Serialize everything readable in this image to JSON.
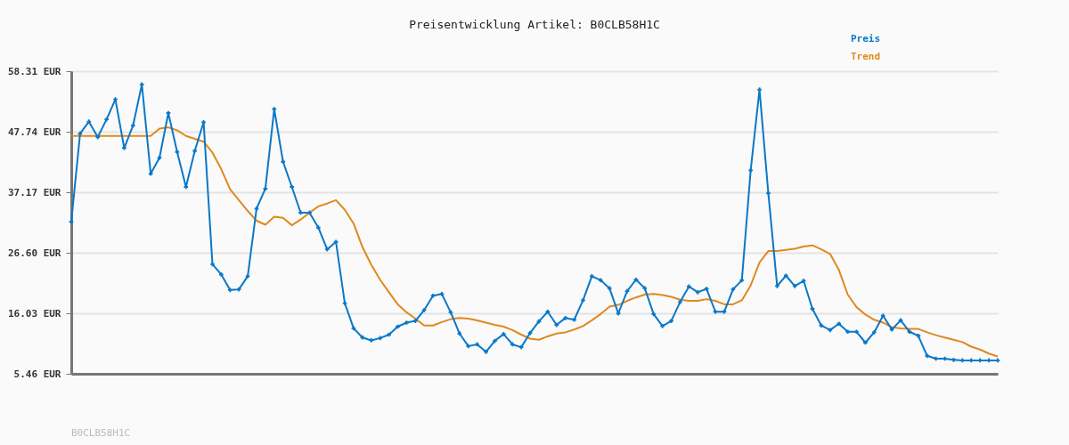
{
  "chart_data": {
    "type": "line",
    "title": "Preisentwicklung Artikel: B0CLB58H1C",
    "categories": [
      null,
      null,
      null,
      null,
      null,
      null,
      null,
      null,
      null,
      null,
      null,
      null,
      null,
      null,
      null,
      null,
      null,
      null,
      null,
      null,
      null,
      null,
      null,
      null,
      null,
      null,
      null,
      null,
      null,
      null,
      null,
      null,
      null,
      null,
      null,
      null,
      null,
      null,
      null,
      null,
      null,
      null,
      null,
      null,
      null,
      null,
      null,
      null,
      null,
      null,
      null,
      null,
      null,
      null,
      null,
      null,
      null,
      null,
      null,
      null,
      null,
      null,
      null,
      null,
      null,
      null,
      null,
      null,
      null,
      null,
      null,
      null,
      null,
      null,
      null,
      null,
      null,
      null,
      null,
      null,
      null,
      null,
      null,
      null,
      null,
      null,
      null,
      null,
      null,
      null,
      null,
      null,
      null,
      null,
      null,
      null,
      null,
      null,
      null,
      null,
      null,
      null,
      null,
      null,
      null,
      null
    ],
    "series": [
      {
        "name": "Preis",
        "color": "#0a78c8",
        "marker": "cross",
        "values": [
          32.0,
          47.4,
          49.5,
          46.8,
          49.9,
          53.4,
          44.9,
          48.8,
          56.0,
          40.4,
          43.2,
          51.0,
          44.2,
          38.1,
          44.4,
          49.4,
          24.6,
          22.8,
          20.1,
          20.2,
          22.5,
          34.3,
          37.8,
          51.7,
          42.5,
          38.1,
          33.6,
          33.6,
          31.0,
          27.2,
          28.5,
          17.8,
          13.4,
          11.8,
          11.3,
          11.7,
          12.3,
          13.7,
          14.4,
          14.7,
          16.6,
          19.1,
          19.4,
          16.2,
          12.5,
          10.3,
          10.6,
          9.3,
          11.2,
          12.4,
          10.6,
          10.1,
          12.6,
          14.6,
          16.3,
          14.0,
          15.2,
          14.9,
          18.3,
          22.5,
          21.8,
          20.4,
          16.0,
          19.9,
          21.9,
          20.4,
          15.9,
          13.8,
          14.7,
          18.0,
          20.7,
          19.7,
          20.3,
          16.3,
          16.3,
          20.2,
          21.8,
          41.0,
          55.1,
          37.0,
          20.8,
          22.6,
          20.8,
          21.7,
          16.8,
          13.9,
          13.1,
          14.2,
          12.8,
          12.8,
          10.9,
          12.7,
          15.6,
          13.2,
          14.8,
          12.8,
          12.1,
          8.6,
          8.1,
          8.1,
          7.9,
          7.8,
          7.8,
          7.8,
          7.8,
          7.8
        ]
      },
      {
        "name": "Trend",
        "color": "#e0891e",
        "marker": "none",
        "values": [
          47.0,
          47.0,
          47.0,
          47.0,
          47.0,
          47.0,
          47.0,
          47.0,
          47.0,
          47.0,
          48.3,
          48.5,
          48.0,
          47.0,
          46.5,
          46.0,
          44.1,
          41.2,
          37.7,
          35.8,
          33.9,
          32.2,
          31.5,
          32.9,
          32.7,
          31.4,
          32.4,
          33.6,
          34.7,
          35.2,
          35.8,
          34.1,
          31.7,
          27.6,
          24.5,
          21.9,
          19.7,
          17.6,
          16.2,
          15.1,
          13.9,
          13.9,
          14.5,
          15.0,
          15.2,
          15.1,
          14.8,
          14.4,
          14.0,
          13.7,
          13.1,
          12.3,
          11.6,
          11.4,
          12.0,
          12.5,
          12.7,
          13.2,
          13.8,
          14.8,
          15.9,
          17.2,
          17.5,
          18.2,
          18.8,
          19.3,
          19.4,
          19.2,
          18.9,
          18.4,
          18.2,
          18.2,
          18.5,
          18.2,
          17.6,
          17.6,
          18.3,
          20.9,
          24.9,
          26.9,
          26.9,
          27.1,
          27.3,
          27.7,
          27.9,
          27.2,
          26.4,
          23.6,
          19.3,
          17.1,
          15.8,
          14.9,
          14.4,
          13.6,
          13.4,
          13.3,
          13.3,
          12.7,
          12.2,
          11.8,
          11.4,
          11.0,
          10.2,
          9.7,
          9.0,
          8.5
        ]
      }
    ],
    "ylim": [
      5.46,
      58.31
    ],
    "yticks": [
      {
        "value": 5.46,
        "label": "5.46 EUR"
      },
      {
        "value": 16.03,
        "label": "16.03 EUR"
      },
      {
        "value": 26.6,
        "label": "26.60 EUR"
      },
      {
        "value": 37.17,
        "label": "37.17 EUR"
      },
      {
        "value": 47.74,
        "label": "47.74 EUR"
      },
      {
        "value": 58.31,
        "label": "58.31 EUR"
      }
    ],
    "grid": "y",
    "legend": "top right",
    "line_style": "solid",
    "annotations": [
      "B0CLB58H1C"
    ]
  }
}
